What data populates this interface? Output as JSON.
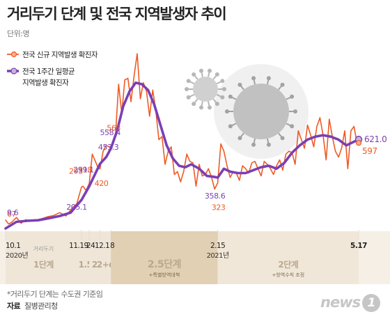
{
  "title": "거리두기 단계 및 전국 지역발생자 추이",
  "unit": "단위:명",
  "footnote": "*거리두기 단계는 수도권 기준임",
  "source_label": "자료",
  "source": "질병관리청",
  "logo": "news",
  "logo_suffix": "1",
  "colors": {
    "daily": "#ee5a24",
    "avg": "#7a3fb4",
    "stage_band": "#f1e7d8",
    "stage_dark": "#e2d0b4"
  },
  "chart_data": {
    "type": "line",
    "x_range": [
      "2020-10-01",
      "2021-05-17"
    ],
    "y_range": [
      0,
      1100
    ],
    "legend": [
      {
        "name": "전국 신규 지역발생 확진자",
        "color": "#ee5a24"
      },
      {
        "name": "전국 1주간 일평균",
        "name_line2": "지역발생 확진자",
        "color": "#7a3fb4"
      }
    ],
    "series": [
      {
        "name": "전국 신규 지역발생 확진자",
        "points": [
          [
            "2020-10-01",
            67
          ],
          [
            "2020-10-03",
            40
          ],
          [
            "2020-10-05",
            52
          ],
          [
            "2020-10-08",
            85
          ],
          [
            "2020-10-11",
            45
          ],
          [
            "2020-10-14",
            70
          ],
          [
            "2020-10-17",
            60
          ],
          [
            "2020-10-20",
            65
          ],
          [
            "2020-10-24",
            75
          ],
          [
            "2020-10-28",
            90
          ],
          [
            "2020-11-01",
            98
          ],
          [
            "2020-11-05",
            118
          ],
          [
            "2020-11-09",
            95
          ],
          [
            "2020-11-13",
            150
          ],
          [
            "2020-11-16",
            180
          ],
          [
            "2020-11-19",
            293
          ],
          [
            "2020-11-20",
            300
          ],
          [
            "2020-11-22",
            270
          ],
          [
            "2020-11-24",
            318
          ],
          [
            "2020-11-26",
            520
          ],
          [
            "2020-11-28",
            470
          ],
          [
            "2020-11-30",
            420
          ],
          [
            "2020-12-01",
            420
          ],
          [
            "2020-12-03",
            540
          ],
          [
            "2020-12-05",
            580
          ],
          [
            "2020-12-08",
            563
          ],
          [
            "2020-12-11",
            650
          ],
          [
            "2020-12-13",
            1000
          ],
          [
            "2020-12-15",
            800
          ],
          [
            "2020-12-17",
            1030
          ],
          [
            "2020-12-19",
            1040
          ],
          [
            "2020-12-21",
            880
          ],
          [
            "2020-12-23",
            1060
          ],
          [
            "2020-12-25",
            1210
          ],
          [
            "2020-12-27",
            900
          ],
          [
            "2020-12-29",
            1010
          ],
          [
            "2020-12-31",
            950
          ],
          [
            "2021-01-02",
            780
          ],
          [
            "2021-01-04",
            960
          ],
          [
            "2021-01-06",
            820
          ],
          [
            "2021-01-08",
            620
          ],
          [
            "2021-01-10",
            640
          ],
          [
            "2021-01-12",
            450
          ],
          [
            "2021-01-14",
            540
          ],
          [
            "2021-01-16",
            570
          ],
          [
            "2021-01-18",
            380
          ],
          [
            "2021-01-20",
            400
          ],
          [
            "2021-01-22",
            330
          ],
          [
            "2021-01-24",
            400
          ],
          [
            "2021-01-26",
            520
          ],
          [
            "2021-01-28",
            470
          ],
          [
            "2021-01-30",
            460
          ],
          [
            "2021-02-01",
            300
          ],
          [
            "2021-02-03",
            450
          ],
          [
            "2021-02-05",
            370
          ],
          [
            "2021-02-07",
            380
          ],
          [
            "2021-02-09",
            420
          ],
          [
            "2021-02-11",
            360
          ],
          [
            "2021-02-13",
            280
          ],
          [
            "2021-02-15",
            323
          ],
          [
            "2021-02-17",
            590
          ],
          [
            "2021-02-19",
            540
          ],
          [
            "2021-02-21",
            440
          ],
          [
            "2021-02-23",
            360
          ],
          [
            "2021-02-25",
            400
          ],
          [
            "2021-02-27",
            390
          ],
          [
            "2021-03-01",
            340
          ],
          [
            "2021-03-03",
            440
          ],
          [
            "2021-03-05",
            420
          ],
          [
            "2021-03-07",
            390
          ],
          [
            "2021-03-09",
            460
          ],
          [
            "2021-03-11",
            470
          ],
          [
            "2021-03-13",
            420
          ],
          [
            "2021-03-15",
            370
          ],
          [
            "2021-03-17",
            470
          ],
          [
            "2021-03-19",
            450
          ],
          [
            "2021-03-21",
            420
          ],
          [
            "2021-03-23",
            380
          ],
          [
            "2021-03-25",
            440
          ],
          [
            "2021-03-27",
            480
          ],
          [
            "2021-03-29",
            410
          ],
          [
            "2021-03-31",
            520
          ],
          [
            "2021-04-02",
            540
          ],
          [
            "2021-04-04",
            530
          ],
          [
            "2021-04-06",
            450
          ],
          [
            "2021-04-08",
            680
          ],
          [
            "2021-04-10",
            620
          ],
          [
            "2021-04-12",
            560
          ],
          [
            "2021-04-14",
            720
          ],
          [
            "2021-04-16",
            650
          ],
          [
            "2021-04-18",
            570
          ],
          [
            "2021-04-20",
            710
          ],
          [
            "2021-04-22",
            770
          ],
          [
            "2021-04-24",
            650
          ],
          [
            "2021-04-26",
            480
          ],
          [
            "2021-04-28",
            760
          ],
          [
            "2021-04-30",
            640
          ],
          [
            "2021-05-02",
            540
          ],
          [
            "2021-05-04",
            500
          ],
          [
            "2021-05-06",
            560
          ],
          [
            "2021-05-08",
            680
          ],
          [
            "2021-05-10",
            420
          ],
          [
            "2021-05-12",
            680
          ],
          [
            "2021-05-14",
            710
          ],
          [
            "2021-05-16",
            590
          ],
          [
            "2021-05-17",
            597
          ]
        ]
      },
      {
        "name": "전국 1주간 일평균 지역발생 확진자",
        "points": [
          [
            "2020-10-01",
            9.6
          ],
          [
            "2020-10-08",
            55
          ],
          [
            "2020-10-15",
            62
          ],
          [
            "2020-10-22",
            66
          ],
          [
            "2020-10-29",
            80
          ],
          [
            "2020-11-05",
            95
          ],
          [
            "2020-11-12",
            118
          ],
          [
            "2020-11-19",
            205.1
          ],
          [
            "2020-11-24",
            299.1
          ],
          [
            "2020-12-01",
            453.3
          ],
          [
            "2020-12-05",
            500
          ],
          [
            "2020-12-08",
            558.4
          ],
          [
            "2020-12-12",
            680
          ],
          [
            "2020-12-16",
            850
          ],
          [
            "2020-12-20",
            950
          ],
          [
            "2020-12-24",
            1010
          ],
          [
            "2020-12-28",
            1000
          ],
          [
            "2021-01-01",
            960
          ],
          [
            "2021-01-05",
            860
          ],
          [
            "2021-01-09",
            720
          ],
          [
            "2021-01-13",
            580
          ],
          [
            "2021-01-17",
            490
          ],
          [
            "2021-01-21",
            440
          ],
          [
            "2021-01-25",
            430
          ],
          [
            "2021-01-29",
            450
          ],
          [
            "2021-02-03",
            420
          ],
          [
            "2021-02-08",
            370
          ],
          [
            "2021-02-12",
            365
          ],
          [
            "2021-02-15",
            358.6
          ],
          [
            "2021-02-19",
            420
          ],
          [
            "2021-02-23",
            400
          ],
          [
            "2021-02-28",
            390
          ],
          [
            "2021-03-05",
            390
          ],
          [
            "2021-03-10",
            410
          ],
          [
            "2021-03-15",
            430
          ],
          [
            "2021-03-20",
            440
          ],
          [
            "2021-03-25",
            420
          ],
          [
            "2021-03-30",
            460
          ],
          [
            "2021-04-04",
            530
          ],
          [
            "2021-04-09",
            580
          ],
          [
            "2021-04-14",
            620
          ],
          [
            "2021-04-19",
            640
          ],
          [
            "2021-04-24",
            650
          ],
          [
            "2021-04-29",
            640
          ],
          [
            "2021-05-04",
            620
          ],
          [
            "2021-05-09",
            580
          ],
          [
            "2021-05-13",
            600
          ],
          [
            "2021-05-17",
            621.0
          ]
        ]
      }
    ],
    "annotations_daily": [
      {
        "x": "2020-10-01",
        "y": 67,
        "text": "67"
      },
      {
        "x": "2020-11-19",
        "y": 293,
        "text": "293"
      },
      {
        "x": "2020-11-24",
        "y": 318,
        "text": "318"
      },
      {
        "x": "2020-12-01",
        "y": 420,
        "text": "420"
      },
      {
        "x": "2020-12-08",
        "y": 563,
        "text": "563"
      },
      {
        "x": "2021-02-15",
        "y": 323,
        "text": "323"
      },
      {
        "x": "2021-05-17",
        "y": 597,
        "text": "597"
      }
    ],
    "annotations_avg": [
      {
        "x": "2020-10-01",
        "y": 9.6,
        "text": "9.6"
      },
      {
        "x": "2020-11-19",
        "y": 205.1,
        "text": "205.1"
      },
      {
        "x": "2020-11-24",
        "y": 299.1,
        "text": "299.1"
      },
      {
        "x": "2020-12-01",
        "y": 453.3,
        "text": "453.3"
      },
      {
        "x": "2020-12-08",
        "y": 558.4,
        "text": "558.4"
      },
      {
        "x": "2021-02-15",
        "y": 358.6,
        "text": "358.6"
      },
      {
        "x": "2021-05-17",
        "y": 621.0,
        "text": "621.0"
      }
    ],
    "x_ticks": [
      {
        "x": "2020-10-01",
        "label": "10.1",
        "sub": "2020년"
      },
      {
        "x": "2020-11-19",
        "label": "11.19"
      },
      {
        "x": "2020-11-24",
        "label": "24"
      },
      {
        "x": "2020-12-01",
        "label": "12.1"
      },
      {
        "x": "2020-12-08",
        "label": "8"
      },
      {
        "x": "2021-02-15",
        "label": "2.15",
        "sub": "2021년"
      },
      {
        "x": "2021-05-17",
        "label": "5.17"
      }
    ],
    "stages": [
      {
        "from": "2020-10-01",
        "to": "2020-11-19",
        "label": "1단계",
        "caption": "거리두기"
      },
      {
        "from": "2020-11-19",
        "to": "2020-11-24",
        "label": "1.5"
      },
      {
        "from": "2020-11-24",
        "to": "2020-12-01",
        "label": "2"
      },
      {
        "from": "2020-12-01",
        "to": "2020-12-08",
        "label": "2+α"
      },
      {
        "from": "2020-12-08",
        "to": "2021-02-15",
        "label": "2.5단계",
        "sub": "+특별방역대책"
      },
      {
        "from": "2021-02-15",
        "to": "2021-05-17",
        "label": "2단계",
        "sub": "+방역수칙 조정"
      }
    ]
  }
}
